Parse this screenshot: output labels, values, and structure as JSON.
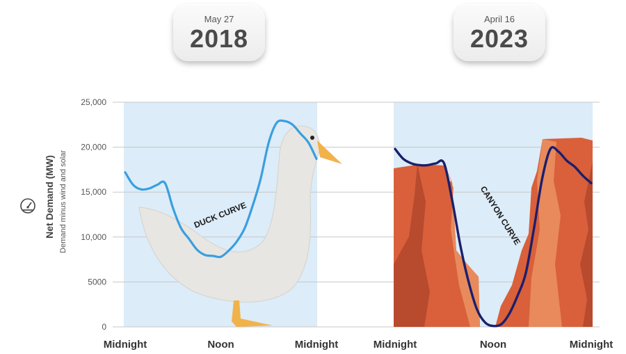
{
  "panels": [
    {
      "date": "May 27",
      "year": "2018",
      "curve_label": "DUCK CURVE"
    },
    {
      "date": "April 16",
      "year": "2023",
      "curve_label": "CANYON CURVE"
    }
  ],
  "colors": {
    "duck": "#3a9ee0",
    "canyon": "#1b1f6b",
    "panel_bg": "#dcecf8",
    "rock": "#d9603a"
  },
  "chart_data": {
    "type": "line",
    "xlabel": "",
    "ylabel": "Net Demand (MW)",
    "ylabel_sub": "Demand minus wind and solar",
    "ylim": [
      0,
      25000
    ],
    "yticks": [
      0,
      5000,
      10000,
      15000,
      20000,
      25000
    ],
    "ytick_labels": [
      "0",
      "5000",
      "10,000",
      "15,000",
      "20,000",
      "25,000"
    ],
    "xtick_labels": [
      "Midnight",
      "Noon",
      "Midnight"
    ],
    "grid": true,
    "series": [
      {
        "name": "DUCK CURVE",
        "x_hours": [
          0,
          1,
          2,
          3,
          4,
          5,
          6,
          7,
          8,
          9,
          10,
          11,
          12,
          13,
          14,
          15,
          16,
          17,
          18,
          19,
          20,
          21,
          22,
          23,
          24
        ],
        "values": [
          17200,
          15800,
          15300,
          15400,
          15800,
          16000,
          13200,
          11000,
          9800,
          8600,
          8000,
          7900,
          7800,
          8500,
          9500,
          11000,
          13500,
          16500,
          20500,
          22700,
          22900,
          22500,
          21500,
          20500,
          18700
        ]
      },
      {
        "name": "CANYON CURVE",
        "x_hours": [
          0,
          1,
          2,
          3,
          4,
          5,
          6,
          7,
          8,
          9,
          10,
          11,
          12,
          13,
          14,
          15,
          16,
          17,
          18,
          19,
          20,
          21,
          22,
          23,
          24
        ],
        "values": [
          19800,
          18700,
          18200,
          18000,
          18000,
          18200,
          18200,
          14000,
          9000,
          5000,
          2000,
          500,
          100,
          300,
          1500,
          3500,
          6000,
          11000,
          16500,
          19800,
          19500,
          18500,
          17800,
          16800,
          16000
        ]
      }
    ]
  }
}
